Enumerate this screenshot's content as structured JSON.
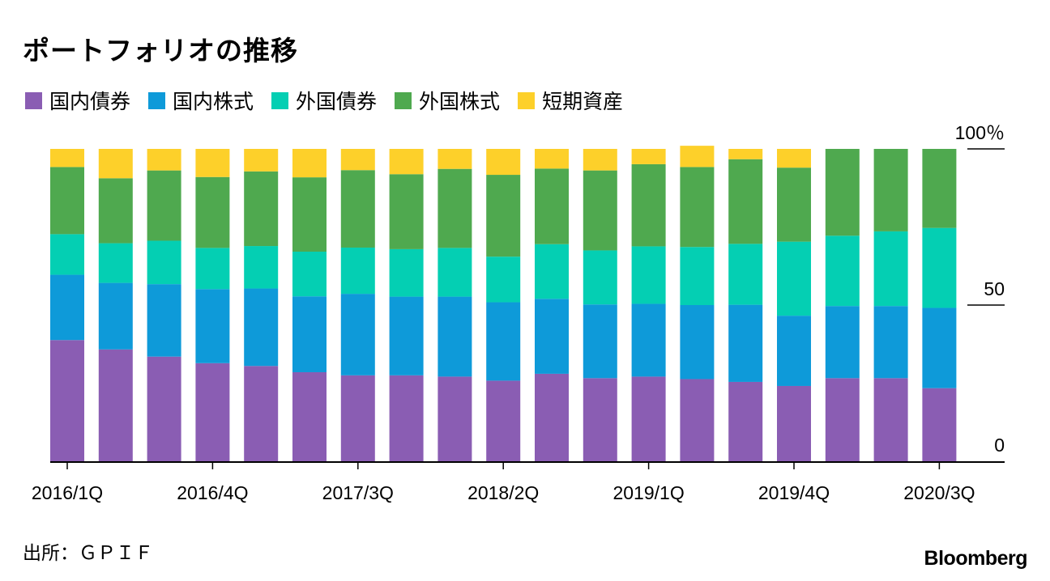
{
  "title": "ポートフォリオの推移",
  "source": "出所：ＧＰＩＦ",
  "logo": "Bloomberg",
  "chart_data": {
    "type": "bar",
    "stacked": true,
    "categories": [
      "2016/1Q",
      "2016/2Q",
      "2016/3Q",
      "2016/4Q",
      "2017/1Q",
      "2017/2Q",
      "2017/3Q",
      "2017/4Q",
      "2018/1Q",
      "2018/2Q",
      "2018/3Q",
      "2018/4Q",
      "2019/1Q",
      "2019/2Q",
      "2019/3Q",
      "2019/4Q",
      "2020/1Q",
      "2020/2Q",
      "2020/3Q"
    ],
    "tick_labels": [
      "2016/1Q",
      "2016/4Q",
      "2017/3Q",
      "2018/2Q",
      "2019/1Q",
      "2019/4Q",
      "2020/3Q"
    ],
    "tick_categories": [
      0,
      3,
      6,
      9,
      12,
      15,
      18
    ],
    "series": [
      {
        "name": "国内債券",
        "color": "#8a5db3",
        "values": [
          38.8,
          35.8,
          33.5,
          31.4,
          30.5,
          28.5,
          27.5,
          27.5,
          27.1,
          25.8,
          28.0,
          26.6,
          27.1,
          26.3,
          25.4,
          24.1,
          26.6,
          26.6,
          23.4
        ]
      },
      {
        "name": "国内株式",
        "color": "#0e9ad9",
        "values": [
          20.9,
          21.3,
          23.2,
          23.7,
          24.8,
          24.3,
          26.1,
          25.2,
          25.6,
          25.1,
          24.0,
          23.6,
          23.3,
          23.7,
          24.7,
          22.5,
          23.1,
          23.1,
          25.7
        ]
      },
      {
        "name": "外国債券",
        "color": "#04cfb3",
        "values": [
          13.0,
          12.7,
          13.9,
          13.2,
          13.6,
          14.3,
          14.8,
          15.2,
          15.6,
          14.6,
          17.5,
          17.3,
          18.4,
          18.6,
          19.5,
          23.7,
          22.5,
          23.9,
          25.6
        ]
      },
      {
        "name": "外国株式",
        "color": "#4fa94f",
        "values": [
          21.5,
          20.8,
          22.5,
          22.7,
          23.9,
          23.8,
          24.8,
          24.0,
          25.3,
          26.2,
          24.2,
          25.6,
          26.3,
          25.6,
          27.1,
          23.7,
          27.8,
          26.4,
          25.3
        ]
      },
      {
        "name": "短期資産",
        "color": "#fdd02a",
        "values": [
          5.8,
          9.4,
          6.9,
          9.0,
          7.2,
          9.1,
          6.8,
          8.1,
          6.4,
          8.3,
          6.3,
          6.9,
          4.9,
          6.8,
          3.3,
          6.0,
          0,
          0,
          0
        ]
      }
    ],
    "y_ticks": [
      {
        "value": 100,
        "label": "100％"
      },
      {
        "value": 50,
        "label": "50"
      },
      {
        "value": 0,
        "label": "0"
      }
    ],
    "ylim": [
      0,
      100
    ],
    "grid": false,
    "legend_position": "top-left"
  }
}
